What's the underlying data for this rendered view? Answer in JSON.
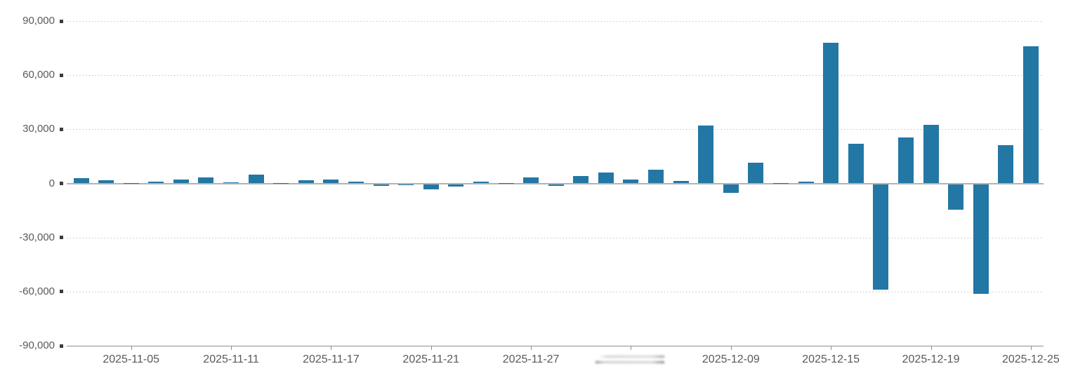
{
  "chart_data": {
    "type": "bar",
    "title": "",
    "series_name": "daily-net-value",
    "bar_color": "#2377a4",
    "axis_label_color": "#595959",
    "grid": {
      "horizontal": true,
      "style": "dotted"
    },
    "legend": null,
    "ylim": [
      -90000,
      90000
    ],
    "y_ticks": [
      {
        "value": 90000,
        "label": "90,000"
      },
      {
        "value": 60000,
        "label": "60,000"
      },
      {
        "value": 30000,
        "label": "30,000"
      },
      {
        "value": 0,
        "label": "0"
      },
      {
        "value": -30000,
        "label": "-30,000"
      },
      {
        "value": -60000,
        "label": "-60,000"
      },
      {
        "value": -90000,
        "label": "-90,000"
      }
    ],
    "x": [
      "2025-11-03",
      "2025-11-04",
      "2025-11-05",
      "2025-11-06",
      "2025-11-07",
      "2025-11-10",
      "2025-11-11",
      "2025-11-12",
      "2025-11-13",
      "2025-11-14",
      "2025-11-17",
      "2025-11-18",
      "2025-11-19",
      "2025-11-20",
      "2025-11-21",
      "2025-11-24",
      "2025-11-25",
      "2025-11-26",
      "2025-11-27",
      "2025-11-28",
      "2025-12-01",
      "2025-12-02",
      "2025-12-03",
      "2025-12-04",
      "2025-12-05",
      "2025-12-08",
      "2025-12-09",
      "2025-12-10",
      "2025-12-11",
      "2025-12-12",
      "2025-12-15",
      "2025-12-16",
      "2025-12-17",
      "2025-12-18",
      "2025-12-19",
      "2025-12-22",
      "2025-12-23",
      "2025-12-24",
      "2025-12-25"
    ],
    "values": [
      3100,
      1800,
      200,
      1100,
      2000,
      3400,
      500,
      4800,
      150,
      1800,
      2200,
      1000,
      -1000,
      -400,
      -2800,
      -1500,
      900,
      150,
      3200,
      -1000,
      4000,
      6000,
      2100,
      7500,
      1300,
      32000,
      -5000,
      11500,
      150,
      1100,
      78000,
      22000,
      -58500,
      25500,
      32500,
      -14000,
      -61000,
      21000,
      76000
    ],
    "x_ticks": [
      {
        "index": 2,
        "label": "2025-11-05",
        "redacted": false
      },
      {
        "index": 6,
        "label": "2025-11-11",
        "redacted": false
      },
      {
        "index": 10,
        "label": "2025-11-17",
        "redacted": false
      },
      {
        "index": 14,
        "label": "2025-11-21",
        "redacted": false
      },
      {
        "index": 18,
        "label": "2025-11-27",
        "redacted": false
      },
      {
        "index": 22,
        "label": "",
        "redacted": true
      },
      {
        "index": 26,
        "label": "2025-12-09",
        "redacted": false
      },
      {
        "index": 30,
        "label": "2025-12-15",
        "redacted": false
      },
      {
        "index": 34,
        "label": "2025-12-19",
        "redacted": false
      },
      {
        "index": 38,
        "label": "2025-12-25",
        "redacted": false
      }
    ]
  }
}
